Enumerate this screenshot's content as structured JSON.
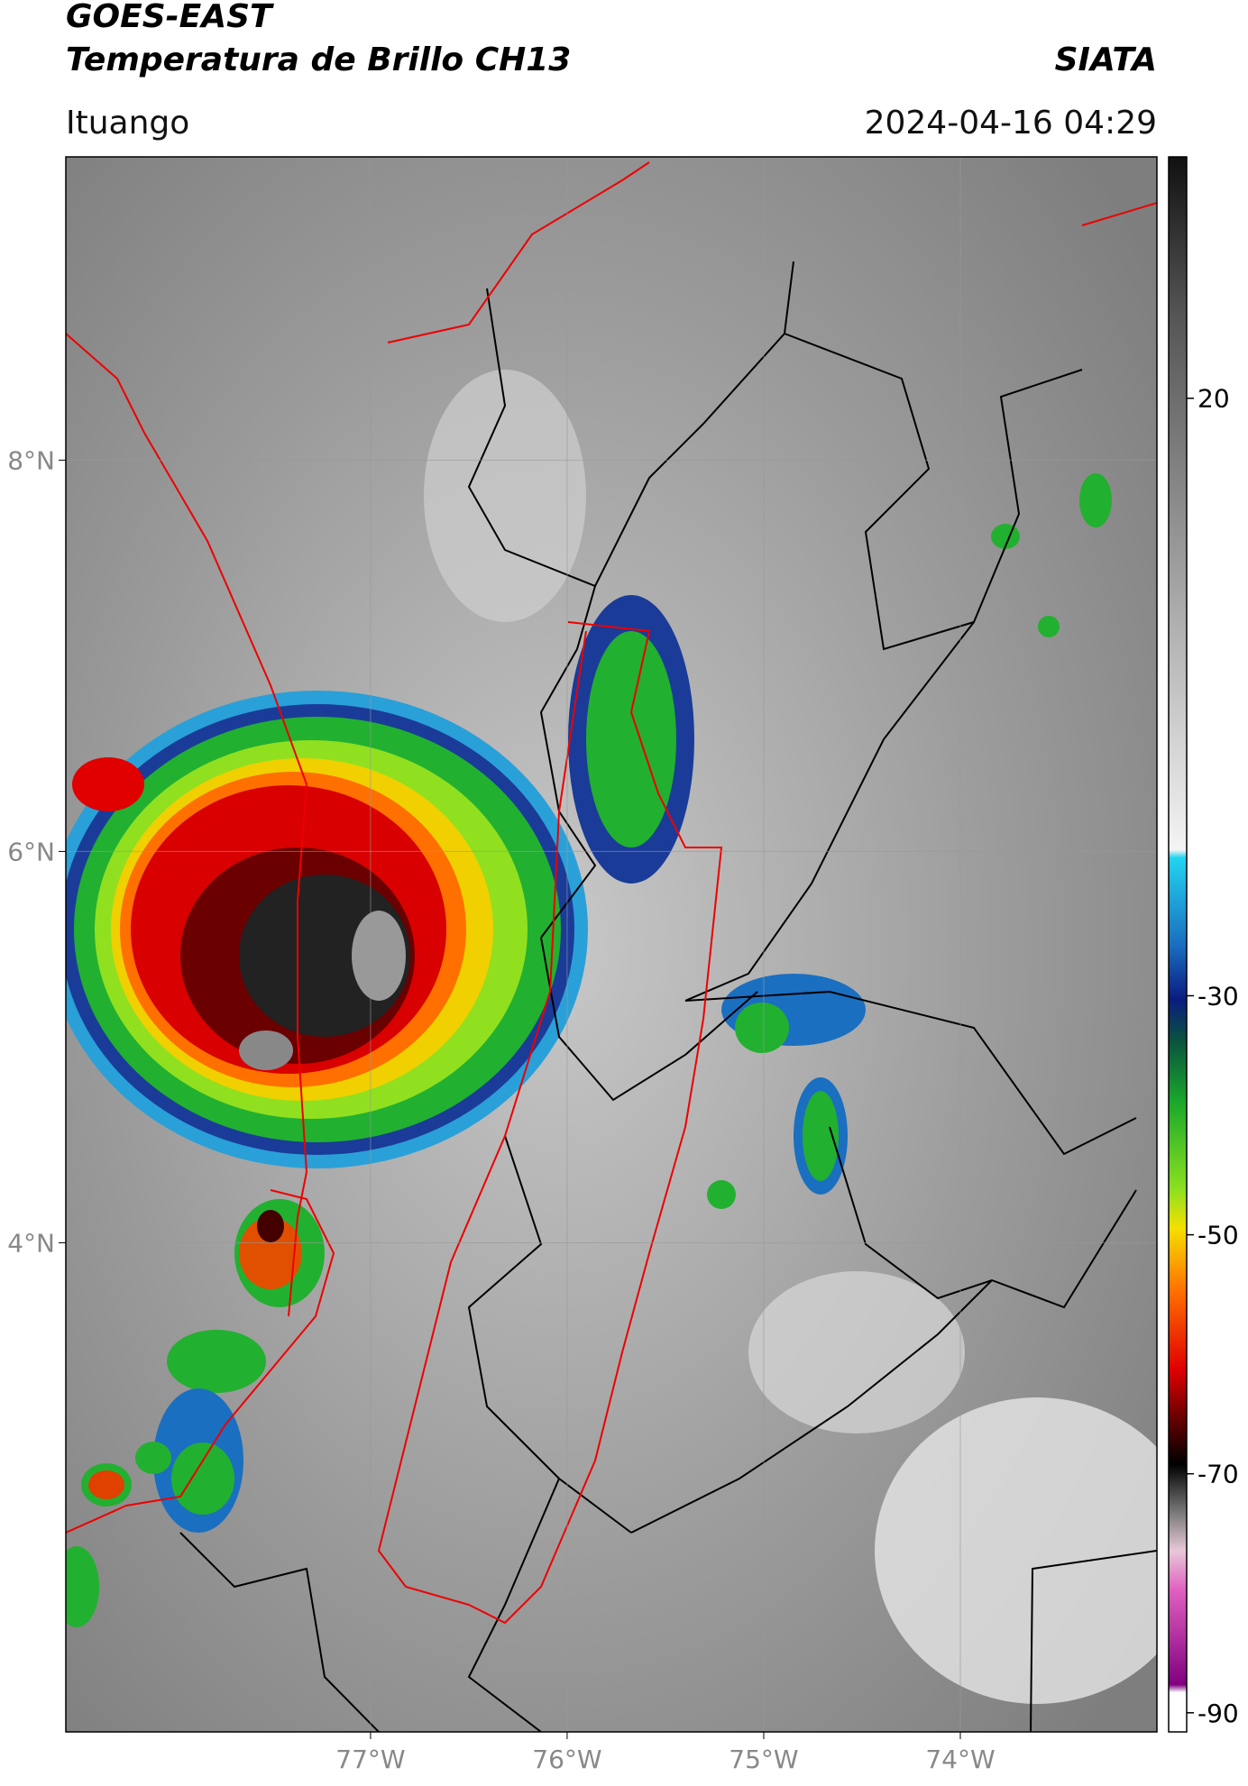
{
  "header": {
    "title": "GOES-EAST",
    "subtitle": "Temperatura de Brillo CH13",
    "source": "SIATA",
    "location": "Ituango",
    "datetime": "2024-04-16 04:29"
  },
  "map": {
    "xlim": [
      -78.55,
      -73.0
    ],
    "ylim": [
      1.5,
      9.55
    ],
    "xticks": [
      {
        "value": -77,
        "label": "77°W"
      },
      {
        "value": -76,
        "label": "76°W"
      },
      {
        "value": -75,
        "label": "75°W"
      },
      {
        "value": -74,
        "label": "74°W"
      }
    ],
    "yticks": [
      {
        "value": 8,
        "label": "8°N"
      },
      {
        "value": 6,
        "label": "6°N"
      },
      {
        "value": 4,
        "label": "4°N"
      }
    ],
    "grid": true
  },
  "colorbar": {
    "lim": [
      -91.6,
      40.2
    ],
    "ticks": [
      20,
      -30,
      -50,
      -70,
      -90
    ]
  }
}
